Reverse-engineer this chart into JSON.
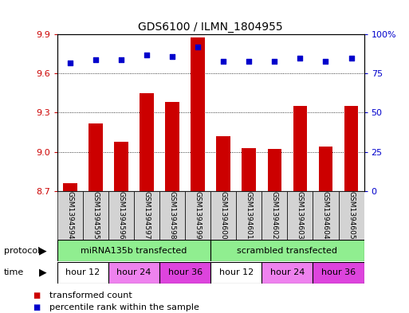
{
  "title": "GDS6100 / ILMN_1804955",
  "samples": [
    "GSM1394594",
    "GSM1394595",
    "GSM1394596",
    "GSM1394597",
    "GSM1394598",
    "GSM1394599",
    "GSM1394600",
    "GSM1394601",
    "GSM1394602",
    "GSM1394603",
    "GSM1394604",
    "GSM1394605"
  ],
  "bar_values": [
    8.76,
    9.22,
    9.08,
    9.45,
    9.38,
    9.88,
    9.12,
    9.03,
    9.02,
    9.35,
    9.04,
    9.35
  ],
  "percentile_values": [
    82,
    84,
    84,
    87,
    86,
    92,
    83,
    83,
    83,
    85,
    83,
    85
  ],
  "ylim_left": [
    8.7,
    9.9
  ],
  "ylim_right": [
    0,
    100
  ],
  "yticks_left": [
    8.7,
    9.0,
    9.3,
    9.6,
    9.9
  ],
  "yticks_right": [
    0,
    25,
    50,
    75,
    100
  ],
  "bar_color": "#cc0000",
  "dot_color": "#0000cc",
  "protocol_groups": [
    {
      "label": "miRNA135b transfected",
      "start": 0,
      "end": 6,
      "color": "#90ee90"
    },
    {
      "label": "scrambled transfected",
      "start": 6,
      "end": 12,
      "color": "#90ee90"
    }
  ],
  "time_groups": [
    {
      "label": "hour 12",
      "start": 0,
      "end": 2,
      "color": "#ffffff"
    },
    {
      "label": "hour 24",
      "start": 2,
      "end": 4,
      "color": "#ee82ee"
    },
    {
      "label": "hour 36",
      "start": 4,
      "end": 6,
      "color": "#dd44dd"
    },
    {
      "label": "hour 12",
      "start": 6,
      "end": 8,
      "color": "#ffffff"
    },
    {
      "label": "hour 24",
      "start": 8,
      "end": 10,
      "color": "#ee82ee"
    },
    {
      "label": "hour 36",
      "start": 10,
      "end": 12,
      "color": "#dd44dd"
    }
  ],
  "legend_items": [
    {
      "label": "transformed count",
      "color": "#cc0000"
    },
    {
      "label": "percentile rank within the sample",
      "color": "#0000cc"
    }
  ],
  "sample_bg_color": "#d3d3d3",
  "protocol_label": "protocol",
  "time_label": "time",
  "figsize": [
    5.13,
    3.93
  ],
  "dpi": 100
}
